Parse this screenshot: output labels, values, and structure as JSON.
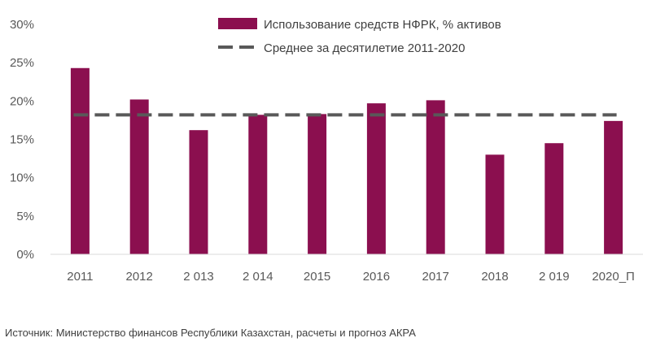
{
  "chart_data": {
    "type": "bar",
    "categories": [
      "2011",
      "2012",
      "2 013",
      "2 014",
      "2015",
      "2016",
      "2017",
      "2018",
      "2 019",
      "2020_П"
    ],
    "series": [
      {
        "name": "Использование средств НФРК, % активов",
        "values": [
          24.3,
          20.2,
          16.2,
          18.2,
          18.3,
          19.7,
          20.1,
          13.0,
          14.5,
          17.4
        ],
        "color": "#8b0f4f"
      }
    ],
    "reference_line": {
      "name": "Среднее за десятилетие 2011-2020",
      "value": 18.2,
      "color": "#595959",
      "style": "dashed"
    },
    "y_ticks": [
      "0%",
      "5%",
      "10%",
      "15%",
      "20%",
      "25%",
      "30%"
    ],
    "ylim": [
      0,
      30
    ],
    "grid": false,
    "legend_position": "top-right"
  },
  "source_text": "Источник: Министерство финансов Республики Казахстан, расчеты и прогноз АКРА"
}
